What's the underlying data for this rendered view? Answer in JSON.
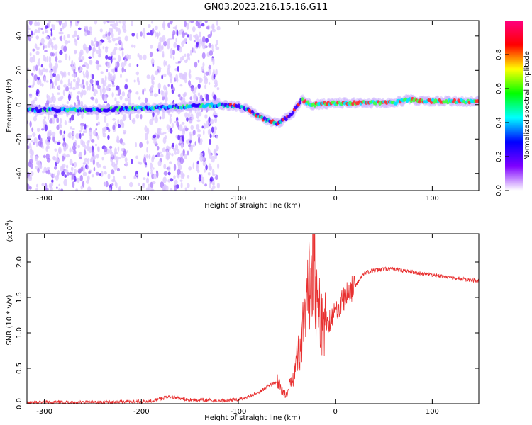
{
  "title": "GN03.2023.216.15.16.G11",
  "chart_data": [
    {
      "type": "heatmap",
      "name": "spectrogram",
      "xlabel": "Height of straight line (km)",
      "ylabel": "Frequency (Hz)",
      "xlim": [
        -318,
        148
      ],
      "ylim": [
        -50,
        49
      ],
      "x_ticks": [
        -300,
        -200,
        -100,
        0,
        100
      ],
      "y_ticks": [
        -40,
        -20,
        0,
        20,
        40
      ],
      "x_tick_labels": [
        "-300",
        "-200",
        "-100",
        "0",
        "100"
      ],
      "y_tick_labels": [
        "-40",
        "-20",
        "0",
        "20",
        "40"
      ],
      "colorbar": {
        "label": "Normalized spectral amplitude",
        "range": [
          0.0,
          1.0
        ],
        "ticks": [
          0.0,
          0.2,
          0.4,
          0.6,
          0.8
        ],
        "tick_labels": [
          "0.0",
          "0.2",
          "0.4",
          "0.6",
          "0.8"
        ],
        "colors": [
          "#ffffff",
          "#7f00ff",
          "#0000ff",
          "#00ffff",
          "#00ff00",
          "#ffff00",
          "#ff0000",
          "#ff0080"
        ]
      },
      "trace": [
        {
          "x": -318,
          "y": -3
        },
        {
          "x": -250,
          "y": -3
        },
        {
          "x": -200,
          "y": -2
        },
        {
          "x": -150,
          "y": -1
        },
        {
          "x": -120,
          "y": 0
        },
        {
          "x": -100,
          "y": -1
        },
        {
          "x": -90,
          "y": -3
        },
        {
          "x": -75,
          "y": -8
        },
        {
          "x": -60,
          "y": -11
        },
        {
          "x": -45,
          "y": -6
        },
        {
          "x": -35,
          "y": 3
        },
        {
          "x": -25,
          "y": 0
        },
        {
          "x": 0,
          "y": 1
        },
        {
          "x": 60,
          "y": 1
        },
        {
          "x": 75,
          "y": 3
        },
        {
          "x": 95,
          "y": 2
        },
        {
          "x": 148,
          "y": 2
        }
      ]
    },
    {
      "type": "line",
      "name": "snr",
      "xlabel": "Height of straight line (km)",
      "ylabel": "SNR (10 * v/v)",
      "y_multiplier": "(x10^4)",
      "xlim": [
        -318,
        148
      ],
      "ylim": [
        0,
        2.4
      ],
      "x_ticks": [
        -300,
        -200,
        -100,
        0,
        100
      ],
      "y_ticks": [
        0.0,
        0.5,
        1.0,
        1.5,
        2.0
      ],
      "x_tick_labels": [
        "-300",
        "-200",
        "-100",
        "0",
        "100"
      ],
      "y_tick_labels": [
        "0.0",
        "0.5",
        "1.0",
        "1.5",
        "2.0"
      ],
      "color": "#e83030",
      "x": [
        -318,
        -300,
        -280,
        -260,
        -240,
        -220,
        -200,
        -190,
        -180,
        -170,
        -160,
        -150,
        -140,
        -130,
        -120,
        -110,
        -100,
        -90,
        -80,
        -70,
        -60,
        -50,
        -45,
        -40,
        -35,
        -32,
        -30,
        -28,
        -25,
        -22,
        -20,
        -18,
        -15,
        -10,
        -5,
        0,
        5,
        10,
        15,
        20,
        25,
        30,
        40,
        50,
        60,
        70,
        80,
        90,
        100,
        110,
        120,
        130,
        140,
        148
      ],
      "y": [
        0.01,
        0.02,
        0.02,
        0.02,
        0.02,
        0.03,
        0.03,
        0.04,
        0.07,
        0.1,
        0.07,
        0.06,
        0.05,
        0.05,
        0.04,
        0.05,
        0.06,
        0.1,
        0.15,
        0.25,
        0.3,
        0.1,
        0.35,
        0.6,
        0.9,
        1.1,
        1.2,
        1.5,
        2.0,
        2.3,
        1.6,
        1.3,
        1.2,
        1.15,
        1.2,
        1.3,
        1.4,
        1.5,
        1.6,
        1.65,
        1.75,
        1.85,
        1.88,
        1.9,
        1.9,
        1.88,
        1.86,
        1.83,
        1.82,
        1.8,
        1.78,
        1.76,
        1.75,
        1.73
      ]
    }
  ]
}
